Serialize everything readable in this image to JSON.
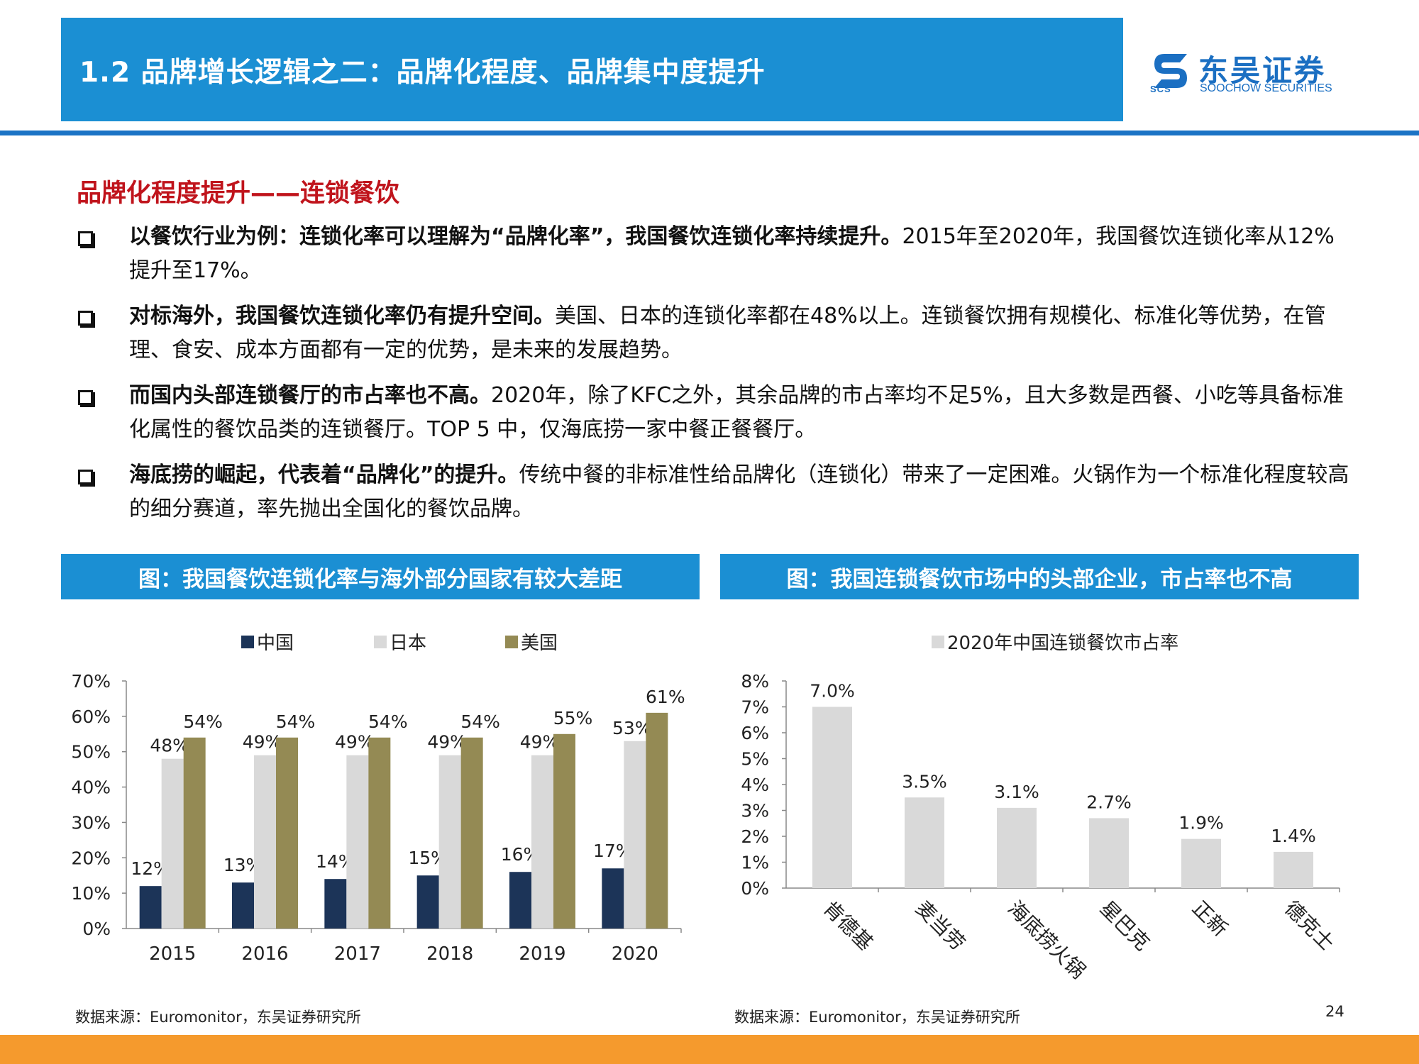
{
  "header": {
    "title": "1.2 品牌增长逻辑之二：品牌化程度、品牌集中度提升",
    "logo_cn": "东吴证券",
    "logo_en": "SOOCHOW SECURITIES",
    "logo_abbr": "SCS"
  },
  "section": {
    "heading": "品牌化程度提升——连锁餐饮"
  },
  "bullets": [
    {
      "bold": "以餐饮行业为例：连锁化率可以理解为“品牌化率”，我国餐饮连锁化率持续提升。",
      "text": "2015年至2020年，我国餐饮连锁化率从12%提升至17%。"
    },
    {
      "bold": "对标海外，我国餐饮连锁化率仍有提升空间。",
      "text": "美国、日本的连锁化率都在48%以上。连锁餐饮拥有规模化、标准化等优势，在管理、食安、成本方面都有一定的优势，是未来的发展趋势。"
    },
    {
      "bold": "而国内头部连锁餐厅的市占率也不高。",
      "text": "2020年，除了KFC之外，其余品牌的市占率均不足5%，且大多数是西餐、小吃等具备标准化属性的餐饮品类的连锁餐厅。TOP 5 中，仅海底捞一家中餐正餐餐厅。"
    },
    {
      "bold": "海底捞的崛起，代表着“品牌化”的提升。",
      "text": "传统中餐的非标准性给品牌化（连锁化）带来了一定困难。火锅作为一个标准化程度较高的细分赛道，率先抛出全国化的餐饮品牌。"
    }
  ],
  "panels": {
    "left_title": "图：我国餐饮连锁化率与海外部分国家有较大差距",
    "right_title": "图：我国连锁餐饮市场中的头部企业，市占率也不高",
    "left_source": "数据来源：Euromonitor，东吴证券研究所",
    "right_source": "数据来源：Euromonitor，东吴证券研究所"
  },
  "page_number": "24",
  "chart_data": [
    {
      "type": "bar",
      "categories": [
        "2015",
        "2016",
        "2017",
        "2018",
        "2019",
        "2020"
      ],
      "series": [
        {
          "name": "中国",
          "color": "#1c3458",
          "values": [
            12,
            13,
            14,
            15,
            16,
            17
          ],
          "labels": [
            "12%",
            "13%",
            "14%",
            "15%",
            "16%",
            "17%"
          ]
        },
        {
          "name": "日本",
          "color": "#d9d9d9",
          "values": [
            48,
            49,
            49,
            49,
            49,
            53
          ],
          "labels": [
            "48%",
            "49%",
            "49%",
            "49%",
            "49%",
            "53%"
          ]
        },
        {
          "name": "美国",
          "color": "#948a54",
          "values": [
            54,
            54,
            54,
            54,
            55,
            61
          ],
          "labels": [
            "54%",
            "54%",
            "54%",
            "54%",
            "55%",
            "61%"
          ]
        }
      ],
      "ylim": [
        0,
        70
      ],
      "yticks": [
        "0%",
        "10%",
        "20%",
        "30%",
        "40%",
        "50%",
        "60%",
        "70%"
      ],
      "legend": "top"
    },
    {
      "type": "bar",
      "categories": [
        "肯德基",
        "麦当劳",
        "海底捞火锅",
        "星巴克",
        "正新",
        "德克士"
      ],
      "series": [
        {
          "name": "2020年中国连锁餐饮市占率",
          "color": "#d9d9d9",
          "values": [
            7.0,
            3.5,
            3.1,
            2.7,
            1.9,
            1.4
          ],
          "labels": [
            "7.0%",
            "3.5%",
            "3.1%",
            "2.7%",
            "1.9%",
            "1.4%"
          ]
        }
      ],
      "ylim": [
        0,
        8
      ],
      "yticks": [
        "0%",
        "1%",
        "2%",
        "3%",
        "4%",
        "5%",
        "6%",
        "7%",
        "8%"
      ],
      "legend": "top"
    }
  ],
  "colors": {
    "header_blue": "#1b8fd3",
    "heading_red": "#c0141c",
    "footer_orange": "#f59a2d"
  }
}
